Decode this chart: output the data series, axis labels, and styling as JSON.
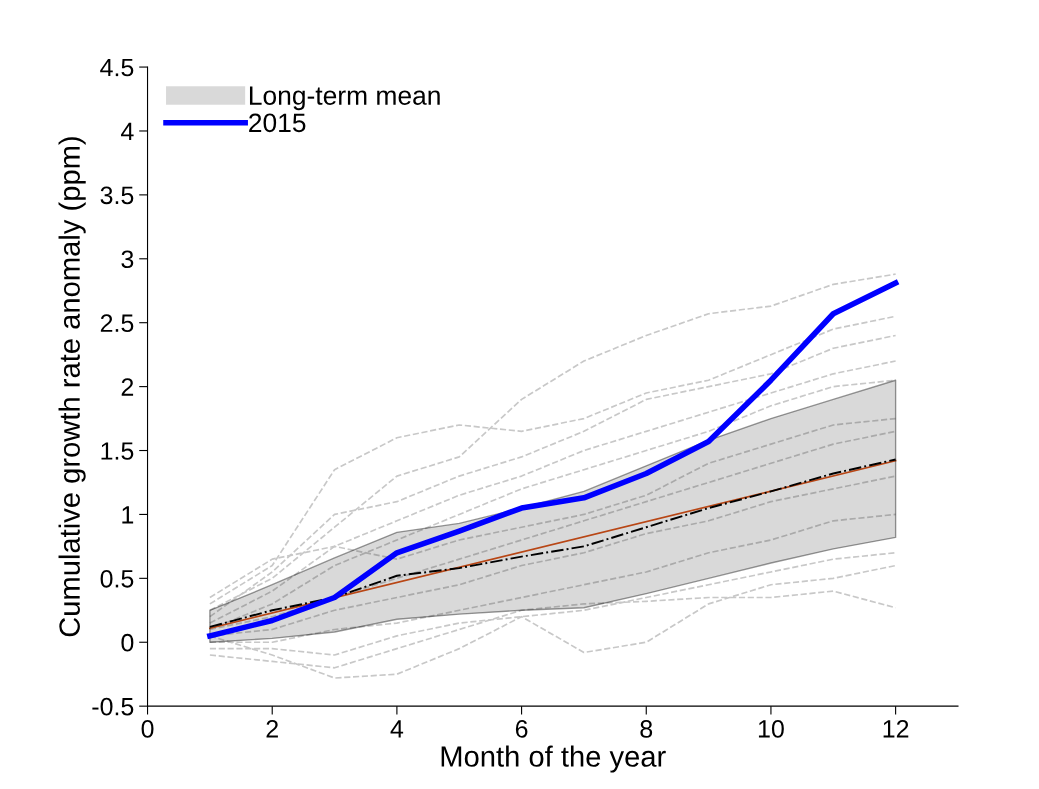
{
  "chart_data": {
    "type": "line",
    "xlabel": "Month of the year",
    "ylabel": "Cumulative growth rate anomaly (ppm)",
    "xlim": [
      0,
      13
    ],
    "xticks": [
      0,
      2,
      4,
      6,
      8,
      10,
      12
    ],
    "ylim": [
      -0.5,
      4.5
    ],
    "yticks": [
      -0.5,
      0,
      0.5,
      1,
      1.5,
      2,
      2.5,
      3,
      3.5,
      4,
      4.5
    ],
    "grid": false,
    "legend": "top left",
    "marker": "none",
    "x": [
      1,
      2,
      3,
      4,
      5,
      6,
      7,
      8,
      9,
      10,
      11,
      12
    ],
    "series": [
      {
        "color": "#c8c8c8",
        "line_style": "dashed",
        "values": [
          0.3,
          0.6,
          1.35,
          1.6,
          1.7,
          1.65,
          1.75,
          1.95,
          2.05,
          2.25,
          2.45,
          2.55
        ]
      },
      {
        "color": "#c8c8c8",
        "line_style": "dashed",
        "values": [
          0.25,
          0.5,
          0.9,
          1.3,
          1.45,
          1.9,
          2.2,
          2.4,
          2.57,
          2.63,
          2.8,
          2.88
        ]
      },
      {
        "color": "#c8c8c8",
        "line_style": "dashed",
        "values": [
          0.2,
          0.55,
          1.0,
          1.1,
          1.3,
          1.45,
          1.65,
          1.9,
          2.0,
          2.1,
          2.3,
          2.4
        ]
      },
      {
        "color": "#c8c8c8",
        "line_style": "dashed",
        "values": [
          0.15,
          0.4,
          0.75,
          0.95,
          1.15,
          1.3,
          1.5,
          1.65,
          1.8,
          1.95,
          2.1,
          2.2
        ]
      },
      {
        "color": "#c8c8c8",
        "line_style": "dashed",
        "values": [
          0.1,
          0.3,
          0.6,
          0.8,
          1.0,
          1.2,
          1.35,
          1.5,
          1.65,
          1.85,
          2.0,
          2.05
        ]
      },
      {
        "color": "#c8c8c8",
        "line_style": "dashed",
        "values": [
          0.1,
          0.2,
          0.35,
          0.5,
          0.65,
          0.8,
          0.95,
          1.1,
          1.25,
          1.4,
          1.55,
          1.65
        ]
      },
      {
        "color": "#c8c8c8",
        "line_style": "dashed",
        "values": [
          0.05,
          0.1,
          0.25,
          0.35,
          0.45,
          0.6,
          0.7,
          0.85,
          0.95,
          1.1,
          1.2,
          1.3
        ]
      },
      {
        "color": "#c8c8c8",
        "line_style": "dashed",
        "values": [
          0.0,
          0.0,
          0.1,
          0.15,
          0.25,
          0.35,
          0.45,
          0.55,
          0.7,
          0.8,
          0.95,
          1.0
        ]
      },
      {
        "color": "#c8c8c8",
        "line_style": "dashed",
        "values": [
          -0.05,
          -0.05,
          -0.1,
          0.05,
          0.15,
          0.2,
          0.25,
          0.35,
          0.45,
          0.55,
          0.65,
          0.7
        ]
      },
      {
        "color": "#c8c8c8",
        "line_style": "dashed",
        "values": [
          0.05,
          -0.1,
          -0.28,
          -0.25,
          -0.05,
          0.2,
          -0.08,
          0.0,
          0.3,
          0.45,
          0.5,
          0.6
        ]
      },
      {
        "color": "#c8c8c8",
        "line_style": "dashed",
        "values": [
          -0.1,
          -0.15,
          -0.2,
          -0.05,
          0.1,
          0.25,
          0.3,
          0.32,
          0.35,
          0.35,
          0.4,
          0.27
        ]
      },
      {
        "color": "#c8c8c8",
        "line_style": "dashed",
        "values": [
          0.35,
          0.65,
          0.75,
          0.65,
          0.8,
          0.9,
          1.0,
          1.15,
          1.4,
          1.55,
          1.7,
          1.75
        ]
      },
      {
        "name": "Long-term mean",
        "color": "#000000",
        "line_style": "dashed",
        "values": [
          0.12,
          0.25,
          0.35,
          0.52,
          0.58,
          0.67,
          0.75,
          0.9,
          1.05,
          1.18,
          1.32,
          1.43
        ],
        "lower": [
          0.0,
          0.03,
          0.08,
          0.18,
          0.22,
          0.25,
          0.27,
          0.38,
          0.5,
          0.62,
          0.73,
          0.82
        ],
        "upper": [
          0.25,
          0.45,
          0.66,
          0.86,
          0.93,
          1.05,
          1.18,
          1.38,
          1.58,
          1.75,
          1.9,
          2.05
        ]
      },
      {
        "color": "#d95319",
        "line_style": "solid",
        "x": [
          1,
          12
        ],
        "values": [
          0.11,
          1.42
        ]
      },
      {
        "name": "2015",
        "color": "#0000ff",
        "line_style": "solid",
        "values": [
          0.05,
          0.17,
          0.35,
          0.7,
          0.87,
          1.05,
          1.13,
          1.32,
          1.57,
          2.05,
          2.57,
          2.81
        ]
      }
    ]
  }
}
